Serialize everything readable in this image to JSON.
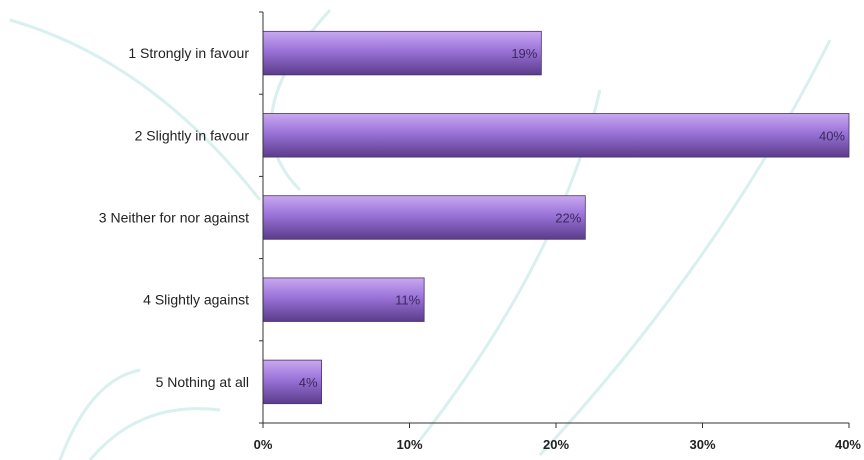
{
  "chart_data": {
    "type": "bar",
    "orientation": "horizontal",
    "title": "",
    "xlabel": "",
    "ylabel": "",
    "categories": [
      "1 Strongly in favour",
      "2 Slightly in favour",
      "3 Neither for nor against",
      "4 Slightly against",
      "5 Nothing at all"
    ],
    "values": [
      19,
      40,
      22,
      11,
      4
    ],
    "value_labels": [
      "19%",
      "40%",
      "22%",
      "11%",
      "4%"
    ],
    "xlim": [
      0,
      40
    ],
    "x_ticks": [
      0,
      10,
      20,
      30,
      40
    ],
    "x_tick_labels": [
      "0%",
      "10%",
      "20%",
      "30%",
      "40%"
    ],
    "unit": "%",
    "grid": false,
    "legend": "none",
    "colors": {
      "bar_top": "#c8a8f0",
      "bar_mid": "#9a72d8",
      "bar_bottom": "#5a3c8a",
      "axis": "#333333",
      "watermark": "#d8f0ee"
    }
  }
}
